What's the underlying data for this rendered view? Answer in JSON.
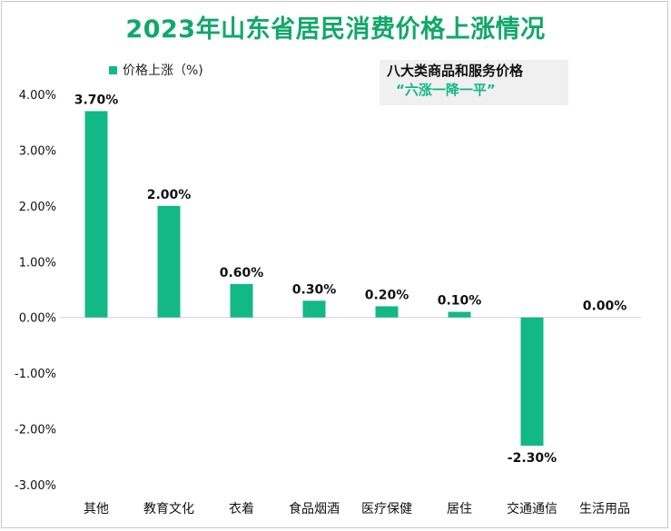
{
  "chart_data": {
    "type": "bar",
    "title": "2023年山东省居民消费价格上涨情况",
    "legend": "价格上涨（%)",
    "legend_position": "top-left",
    "annotation": {
      "line1": "八大类商品和服务价格",
      "line2": "“六涨一降一平”"
    },
    "categories": [
      "其他",
      "教育文化",
      "衣着",
      "食品烟酒",
      "医疗保健",
      "居住",
      "交通通信",
      "生活用品"
    ],
    "values": [
      3.7,
      2.0,
      0.6,
      0.3,
      0.2,
      0.1,
      -2.3,
      0.0
    ],
    "value_labels": [
      "3.70%",
      "2.00%",
      "0.60%",
      "0.30%",
      "0.20%",
      "0.10%",
      "-2.30%",
      "0.00%"
    ],
    "y_ticks": [
      4,
      3,
      2,
      1,
      0,
      -1,
      -2,
      -3
    ],
    "y_tick_labels": [
      "4.00%",
      "3.00%",
      "2.00%",
      "1.00%",
      "0.00%",
      "-1.00%",
      "-2.00%",
      "-3.00%"
    ],
    "ylim": [
      -3,
      4
    ],
    "grid": false,
    "xlabel": "",
    "ylabel": "",
    "color": "#12b886",
    "title_color": "#10a86b"
  }
}
